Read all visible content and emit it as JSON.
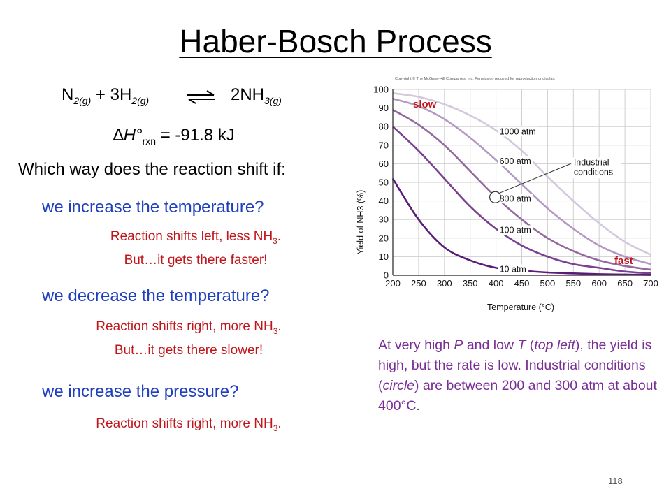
{
  "slide": {
    "title": "Haber-Bosch Process",
    "equation": {
      "r1": "N",
      "r1_sub": "2(g)",
      "plus": "+ 3H",
      "r2_sub": "2(g)",
      "product": "2NH",
      "product_sub": "3(g)"
    },
    "enthalpy": {
      "delta": "∆",
      "symbol": "H°",
      "sub": "rxn",
      "value": " = -91.8 kJ"
    },
    "question_lead": "Which way does the reaction shift if:",
    "q1": "we increase the temperature?",
    "a1_line1": "Reaction shifts left, less NH",
    "a1_line1_sub": "3",
    "a1_line1_end": ".",
    "a1_line2": "But…it gets there faster!",
    "q2": "we decrease the temperature?",
    "a2_line1": "Reaction shifts right, more NH",
    "a2_line1_sub": "3",
    "a2_line1_end": ".",
    "a2_line2": "But…it gets there slower!",
    "q3": "we increase the pressure?",
    "a3_line1": "Reaction shifts right, more NH",
    "a3_line1_sub": "3",
    "a3_line1_end": ".",
    "note": "At very high P and low T (top left), the yield is high, but the rate is low. Industrial conditions (circle) are between 200 and 300 atm at about 400°C.",
    "page_number": "118",
    "colors": {
      "question": "#1f3fbf",
      "answer": "#c0161b",
      "note": "#7a2e95"
    }
  },
  "chart_data": {
    "type": "line",
    "copyright": "Copyright © The McGraw-Hill Companies, Inc. Permission required for reproduction or display.",
    "xlabel": "Temperature (°C)",
    "ylabel": "Yield of NH3 (%)",
    "xlim": [
      200,
      700
    ],
    "ylim": [
      0,
      100
    ],
    "x_ticks": [
      200,
      250,
      300,
      350,
      400,
      450,
      500,
      550,
      600,
      650,
      700
    ],
    "y_ticks": [
      0,
      10,
      20,
      30,
      40,
      50,
      60,
      70,
      80,
      90,
      100
    ],
    "grid": true,
    "x": [
      200,
      250,
      300,
      350,
      400,
      450,
      500,
      550,
      600,
      650,
      700
    ],
    "series": [
      {
        "name": "1000 atm",
        "color": "#d4c8dd",
        "values": [
          98,
          96,
          92,
          86,
          78,
          67,
          53,
          40,
          28,
          18,
          11
        ]
      },
      {
        "name": "600 atm",
        "color": "#b497c4",
        "values": [
          95,
          91,
          84,
          74,
          62,
          49,
          36,
          25,
          16,
          10,
          6
        ]
      },
      {
        "name": "300 atm",
        "color": "#95699f",
        "values": [
          89,
          81,
          70,
          56,
          42,
          30,
          20,
          13,
          8,
          5,
          3
        ]
      },
      {
        "name": "100 atm",
        "color": "#7a4191",
        "values": [
          80,
          67,
          52,
          37,
          25,
          16,
          10,
          6,
          4,
          2,
          1
        ]
      },
      {
        "name": "10 atm",
        "color": "#5a1c78",
        "values": [
          52,
          30,
          15,
          8,
          4,
          2.5,
          1.5,
          1,
          0.6,
          0.4,
          0.2
        ]
      }
    ],
    "annotations": {
      "industrial": "Industrial\nconditions",
      "industrial_x": 400,
      "industrial_y": 42,
      "slow": "slow",
      "fast": "fast"
    }
  }
}
